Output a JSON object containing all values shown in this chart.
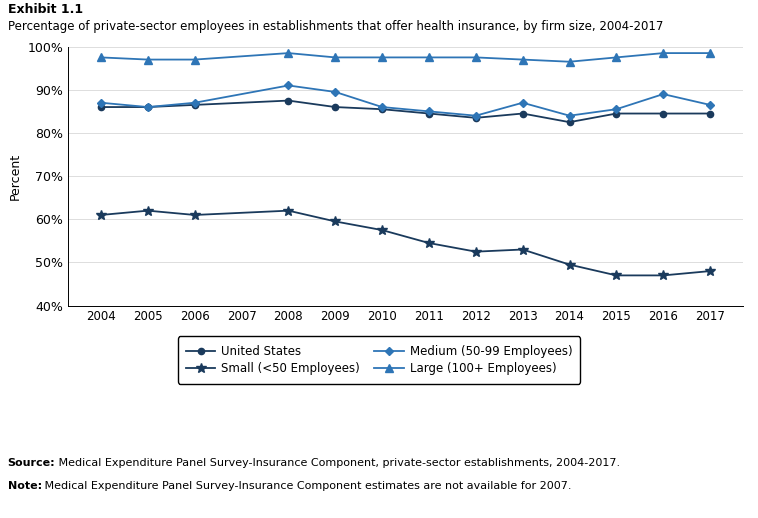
{
  "years": [
    2004,
    2005,
    2006,
    2007,
    2008,
    2009,
    2010,
    2011,
    2012,
    2013,
    2014,
    2015,
    2016,
    2017
  ],
  "united_states": [
    86.0,
    86.0,
    86.5,
    null,
    87.5,
    86.0,
    85.5,
    84.5,
    83.5,
    84.5,
    82.5,
    84.5,
    84.5,
    84.5
  ],
  "small": [
    61.0,
    62.0,
    61.0,
    null,
    62.0,
    59.5,
    57.5,
    54.5,
    52.5,
    53.0,
    49.5,
    47.0,
    47.0,
    48.0
  ],
  "medium": [
    87.0,
    86.0,
    87.0,
    null,
    91.0,
    89.5,
    86.0,
    85.0,
    84.0,
    87.0,
    84.0,
    85.5,
    89.0,
    86.5
  ],
  "large": [
    97.5,
    97.0,
    97.0,
    null,
    98.5,
    97.5,
    97.5,
    97.5,
    97.5,
    97.0,
    96.5,
    97.5,
    98.5,
    98.5
  ],
  "color_dark": "#1a3a5c",
  "color_medium": "#2e75b6",
  "ylim_low": 40,
  "ylim_high": 100,
  "yticks": [
    40,
    50,
    60,
    70,
    80,
    90,
    100
  ],
  "ytick_labels": [
    "40%",
    "50%",
    "60%",
    "70%",
    "80%",
    "90%",
    "100%"
  ],
  "title_line1": "Exhibit 1.1",
  "title_line2": "Percentage of private-sector employees in establishments that offer health insurance, by firm size, 2004-2017",
  "ylabel": "Percent",
  "legend_labels": [
    "United States",
    "Small (<50 Employees)",
    "Medium (50-99 Employees)",
    "Large (100+ Employees)"
  ],
  "source_bold": "Source:",
  "source_rest": " Medical Expenditure Panel Survey-Insurance Component, private-sector establishments, 2004-2017.",
  "note_bold": "Note:",
  "note_rest": " Medical Expenditure Panel Survey-Insurance Component estimates are not available for 2007."
}
